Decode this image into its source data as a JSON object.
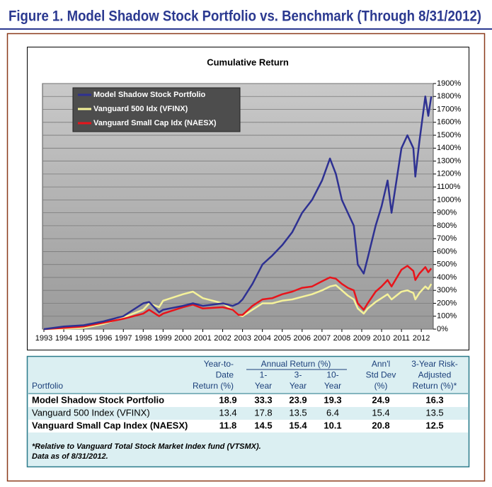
{
  "header": {
    "title": "Figure 1. Model Shadow Stock Portfolio vs. Benchmark (Through 8/31/2012)"
  },
  "chart_data": {
    "type": "line",
    "title": "Cumulative Return",
    "x": [
      1993,
      1994,
      1995,
      1996,
      1997,
      1998,
      1998.3,
      1998.8,
      1999,
      2000,
      2000.5,
      2001,
      2002,
      2002.5,
      2002.8,
      2003,
      2003.5,
      2004,
      2004.5,
      2005,
      2005.5,
      2006,
      2006.5,
      2007,
      2007.4,
      2007.7,
      2008,
      2008.3,
      2008.6,
      2008.8,
      2009.1,
      2009.3,
      2009.7,
      2010,
      2010.3,
      2010.5,
      2011,
      2011.3,
      2011.6,
      2011.7,
      2011.9,
      2012.2,
      2012.35,
      2012.5
    ],
    "series": [
      {
        "name": "Model Shadow Stock Portfolio",
        "color": "#2e3192",
        "values": [
          0,
          20,
          30,
          60,
          100,
          200,
          210,
          130,
          150,
          180,
          200,
          180,
          200,
          180,
          200,
          230,
          350,
          500,
          570,
          650,
          750,
          900,
          1000,
          1150,
          1320,
          1200,
          1000,
          900,
          800,
          500,
          430,
          550,
          800,
          950,
          1150,
          900,
          1400,
          1500,
          1400,
          1180,
          1450,
          1800,
          1650,
          1800
        ]
      },
      {
        "name": "Vanguard 500 Idx (VFINX)",
        "color": "#f5f29a",
        "values": [
          0,
          5,
          10,
          40,
          90,
          150,
          200,
          170,
          220,
          270,
          290,
          240,
          200,
          150,
          110,
          100,
          150,
          200,
          200,
          220,
          230,
          250,
          270,
          300,
          330,
          340,
          300,
          260,
          230,
          160,
          120,
          160,
          210,
          240,
          270,
          230,
          290,
          300,
          280,
          230,
          280,
          330,
          310,
          350
        ]
      },
      {
        "name": "Vanguard Small Cap Idx (NAESX)",
        "color": "#e8141b",
        "values": [
          0,
          10,
          20,
          50,
          80,
          120,
          150,
          100,
          120,
          170,
          190,
          160,
          170,
          150,
          110,
          110,
          180,
          230,
          240,
          270,
          290,
          320,
          330,
          370,
          400,
          390,
          350,
          320,
          300,
          200,
          150,
          200,
          290,
          330,
          380,
          330,
          460,
          490,
          450,
          380,
          430,
          480,
          440,
          470
        ]
      }
    ],
    "xlim": [
      1993,
      2012.6
    ],
    "xticks": [
      1993,
      1994,
      1995,
      1996,
      1997,
      1998,
      1999,
      2000,
      2001,
      2002,
      2003,
      2004,
      2005,
      2006,
      2007,
      2008,
      2009,
      2010,
      2011,
      2012
    ],
    "ylim": [
      0,
      1900
    ],
    "yticks": [
      {
        "value": 0,
        "label": "0%"
      },
      {
        "value": 100,
        "label": "100%"
      },
      {
        "value": 200,
        "label": "200%"
      },
      {
        "value": 300,
        "label": "300%"
      },
      {
        "value": 400,
        "label": "400%"
      },
      {
        "value": 500,
        "label": "500%"
      },
      {
        "value": 600,
        "label": "600%"
      },
      {
        "value": 700,
        "label": "700%"
      },
      {
        "value": 800,
        "label": "800%"
      },
      {
        "value": 900,
        "label": "900%"
      },
      {
        "value": 1000,
        "label": "1000%"
      },
      {
        "value": 1100,
        "label": "1100%"
      },
      {
        "value": 1200,
        "label": "1200%"
      },
      {
        "value": 1300,
        "label": "1300%"
      },
      {
        "value": 1400,
        "label": "1400%"
      },
      {
        "value": 1500,
        "label": "1500%"
      },
      {
        "value": 1600,
        "label": "1600%"
      },
      {
        "value": 1700,
        "label": "1700%"
      },
      {
        "value": 1800,
        "label": "1800%"
      },
      {
        "value": 1900,
        "label": "1900%"
      }
    ],
    "grid": true,
    "legend": "top-left"
  },
  "table": {
    "group_header": "Annual Return (%)",
    "headers": [
      [
        "Portfolio"
      ],
      [
        "Year-to-",
        "Date",
        "Return (%)"
      ],
      [
        "1-",
        "Year"
      ],
      [
        "3-",
        "Year"
      ],
      [
        "10-",
        "Year"
      ],
      [
        "Ann'l",
        "Std Dev",
        "(%)"
      ],
      [
        "3-Year Risk-",
        "Adjusted",
        "Return (%)*"
      ]
    ],
    "rows": [
      [
        "Model Shadow Stock Portfolio",
        18.9,
        33.3,
        23.9,
        19.3,
        24.9,
        16.3
      ],
      [
        "Vanguard 500 Index (VFINX)",
        13.4,
        17.8,
        13.5,
        6.4,
        15.4,
        13.5
      ],
      [
        "Vanguard Small Cap Index (NAESX)",
        11.8,
        14.5,
        15.4,
        10.1,
        20.8,
        12.5
      ]
    ],
    "footnotes": [
      "*Relative to Vanguard Total Stock Market Index fund (VTSMX).",
      "Data as of 8/31/2012."
    ]
  }
}
